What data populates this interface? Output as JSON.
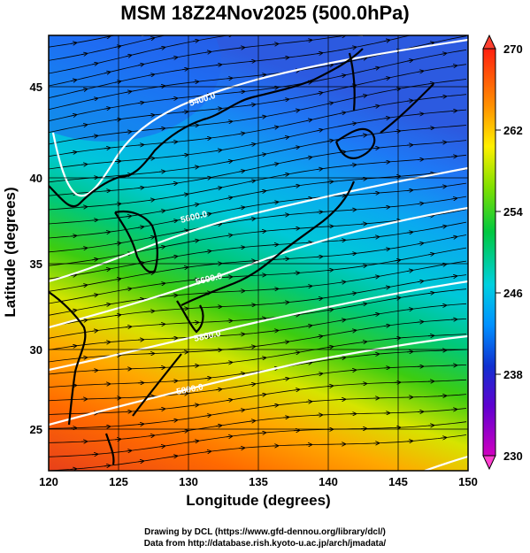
{
  "title": "MSM 18Z24Nov2025 (500.0hPa)",
  "xlabel": "Longitude (degrees)",
  "ylabel": "Latitude  (degrees)",
  "credits": [
    "Drawing by DCL (https://www.gfd-dennou.org/library/dcl/)",
    "Data from http://database.rish.kyoto-u.ac.jp/arch/jmadata/"
  ],
  "chart_data": {
    "type": "heatmap",
    "variable_colorbar": {
      "min": 230,
      "max": 270,
      "ticks": [
        "270",
        "262",
        "254",
        "246",
        "238",
        "230"
      ]
    },
    "x_axis": {
      "range": [
        120,
        150
      ],
      "ticks": [
        "120",
        "125",
        "130",
        "135",
        "140",
        "145",
        "150"
      ]
    },
    "y_axis": {
      "range": [
        22.5,
        48
      ],
      "ticks": [
        "25",
        "30",
        "35",
        "40",
        "45"
      ]
    },
    "contour_labels": [
      "5400.0",
      "5600.0",
      "5600.0",
      "5800.0",
      "5800.0"
    ],
    "colors": {
      "cold": "#1e64ff",
      "mid": "#00c800",
      "warm": "#ff5a00",
      "contour": "#ffffff",
      "frame": "#000000"
    }
  }
}
